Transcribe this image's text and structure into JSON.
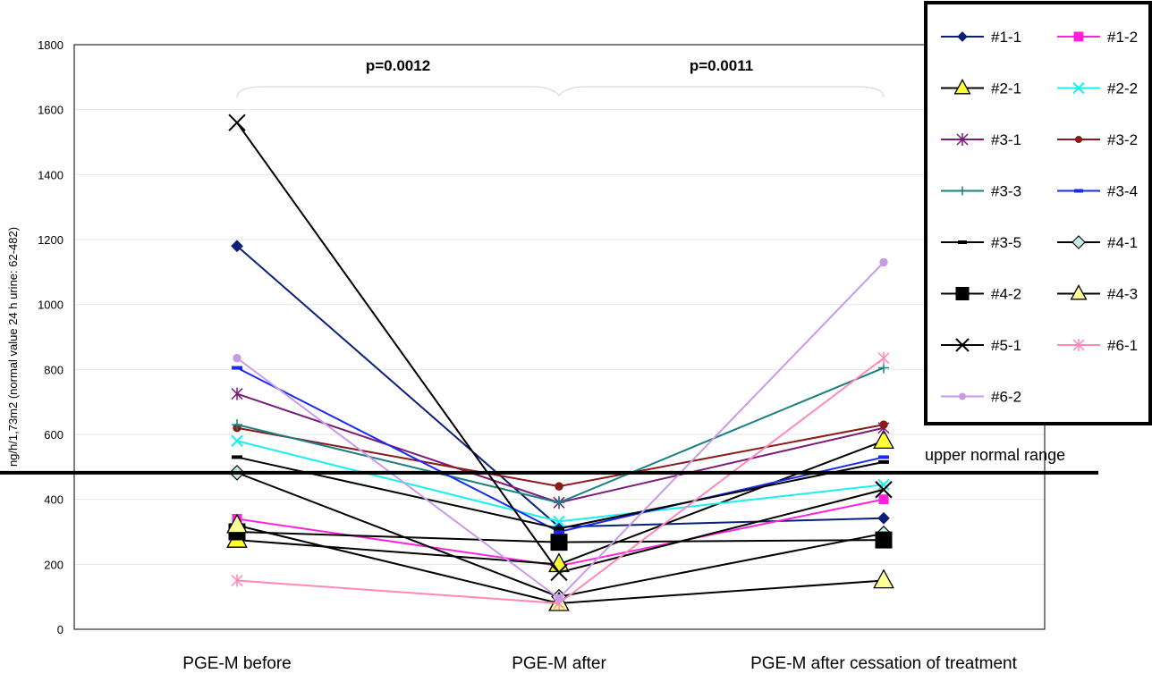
{
  "chart_data": {
    "type": "line",
    "title": "",
    "xlabel": "",
    "ylabel": "ng/h/1,73m2 (normal value 24 h urine: 62-482)",
    "ylim": [
      0,
      1800
    ],
    "yticks": [
      0,
      200,
      400,
      600,
      800,
      1000,
      1200,
      1400,
      1600,
      1800
    ],
    "categories": [
      "PGE-M before",
      "PGE-M after",
      "PGE-M after cessation of treatment"
    ],
    "grid": "horizontal",
    "legend_position": "top-right",
    "reference_line": {
      "value": 482,
      "label": "upper normal range"
    },
    "annotations": [
      {
        "text": "p=0.0012",
        "between": [
          0,
          1
        ]
      },
      {
        "text": "p=0.0011",
        "between": [
          1,
          2
        ]
      }
    ],
    "series": [
      {
        "name": "#1-1",
        "color": "#0a1f7a",
        "marker": "diamond",
        "values": [
          1180,
          315,
          342
        ]
      },
      {
        "name": "#1-2",
        "color": "#ff22dd",
        "marker": "square",
        "values": [
          340,
          195,
          400
        ]
      },
      {
        "name": "#2-1",
        "color": "#000000",
        "marker": "triangle",
        "fill": "#ffff33",
        "values": [
          275,
          200,
          580
        ]
      },
      {
        "name": "#2-2",
        "color": "#19f0f0",
        "marker": "x",
        "values": [
          580,
          332,
          445
        ]
      },
      {
        "name": "#3-1",
        "color": "#7a1a7a",
        "marker": "star",
        "values": [
          725,
          390,
          620
        ]
      },
      {
        "name": "#3-2",
        "color": "#8b1a1a",
        "marker": "circle",
        "values": [
          620,
          440,
          630
        ]
      },
      {
        "name": "#3-3",
        "color": "#1a8080",
        "marker": "plus",
        "values": [
          630,
          390,
          805
        ]
      },
      {
        "name": "#3-4",
        "color": "#1a2aee",
        "marker": "dash",
        "values": [
          805,
          300,
          530
        ]
      },
      {
        "name": "#3-5",
        "color": "#000000",
        "marker": "dash",
        "values": [
          530,
          310,
          515
        ]
      },
      {
        "name": "#4-1",
        "color": "#000000",
        "marker": "diamond",
        "fill": "#c8ecec",
        "values": [
          482,
          100,
          295
        ]
      },
      {
        "name": "#4-2",
        "color": "#000000",
        "marker": "square",
        "fill": "#000000",
        "values": [
          300,
          268,
          275
        ]
      },
      {
        "name": "#4-3",
        "color": "#000000",
        "marker": "triangle",
        "fill": "#ffff99",
        "values": [
          320,
          80,
          150
        ]
      },
      {
        "name": "#5-1",
        "color": "#000000",
        "marker": "x",
        "values": [
          1560,
          175,
          430
        ]
      },
      {
        "name": "#6-1",
        "color": "#ff88bb",
        "marker": "star",
        "values": [
          150,
          80,
          835
        ]
      },
      {
        "name": "#6-2",
        "color": "#c89ae8",
        "marker": "circle",
        "values": [
          835,
          95,
          1130
        ]
      }
    ]
  }
}
